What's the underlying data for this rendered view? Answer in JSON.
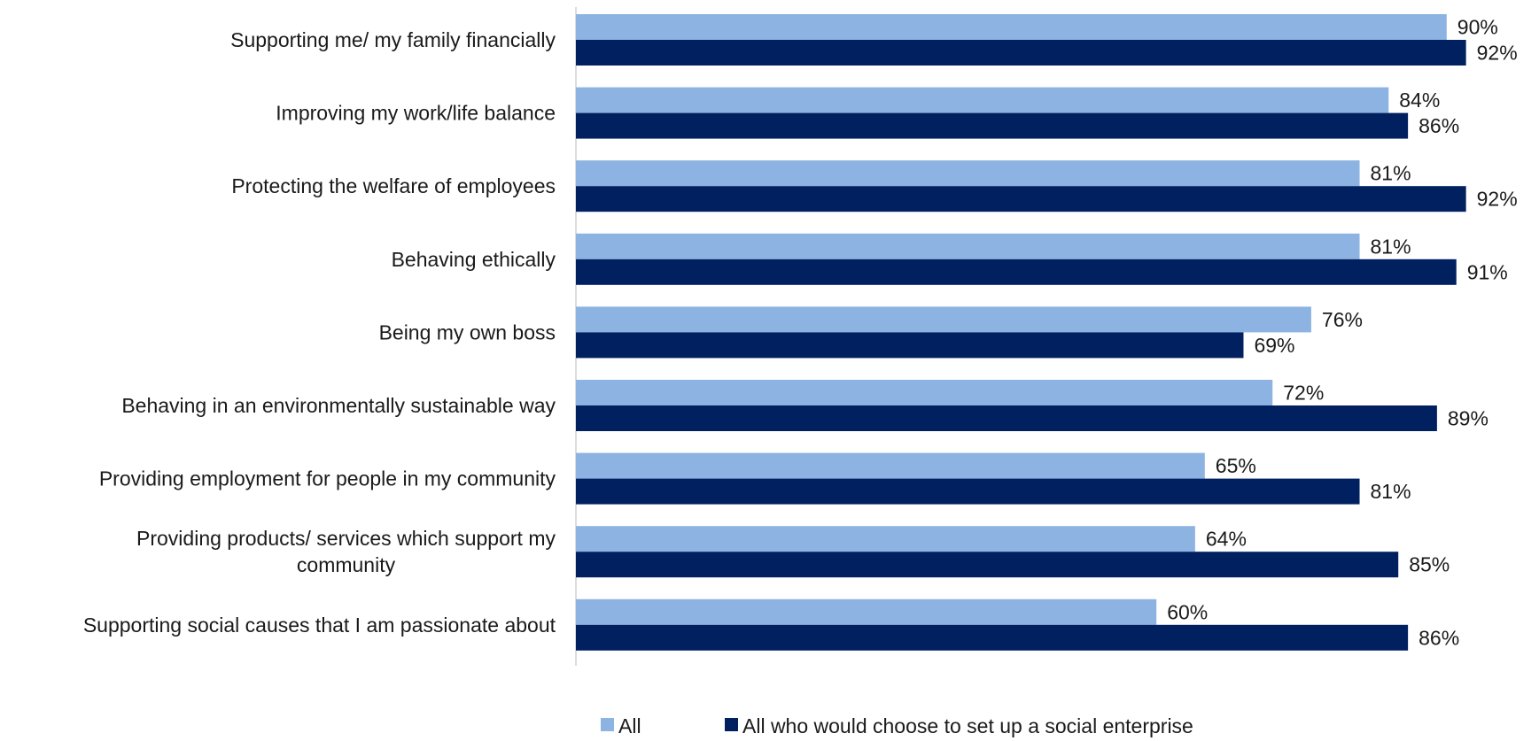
{
  "chart_data": {
    "type": "bar",
    "orientation": "horizontal",
    "title": "",
    "xlabel": "",
    "ylabel": "",
    "xlim": [
      0,
      100
    ],
    "grid": false,
    "legend_position": "bottom",
    "value_suffix": "%",
    "categories": [
      [
        "Supporting me/ my family financially"
      ],
      [
        "Improving my work/life balance"
      ],
      [
        "Protecting the welfare of employees"
      ],
      [
        "Behaving ethically"
      ],
      [
        "Being my own boss"
      ],
      [
        "Behaving in an environmentally sustainable way"
      ],
      [
        "Providing employment for people in my community"
      ],
      [
        "Providing products/ services which support my",
        "community"
      ],
      [
        "Supporting social causes that I am passionate about"
      ]
    ],
    "series": [
      {
        "name": "All",
        "color": "#8db3e2",
        "values": [
          90,
          84,
          81,
          81,
          76,
          72,
          65,
          64,
          60
        ]
      },
      {
        "name": "All who would choose to set up a social enterprise",
        "color": "#002060",
        "values": [
          92,
          86,
          92,
          91,
          69,
          89,
          81,
          85,
          86
        ]
      }
    ]
  }
}
